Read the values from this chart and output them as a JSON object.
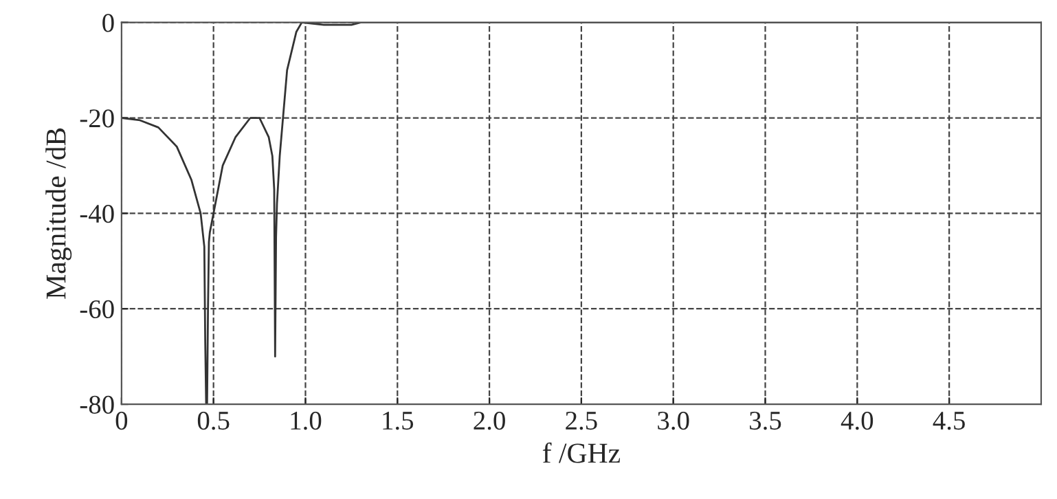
{
  "chart_data": {
    "type": "line",
    "xlabel": "f /GHz",
    "ylabel": "Magnitude /dB",
    "xlim": [
      0,
      5
    ],
    "ylim": [
      -80,
      0
    ],
    "xticks": [
      0,
      {
        "value": 0.5,
        "label": "0.5"
      },
      {
        "value": 1,
        "label": "1.0"
      },
      {
        "value": 1.5,
        "label": "1.5"
      },
      {
        "value": 2,
        "label": "2.0"
      },
      {
        "value": 2.5,
        "label": "2.5"
      },
      {
        "value": 3,
        "label": "3.0"
      },
      {
        "value": 3.5,
        "label": "3.5"
      },
      {
        "value": 4,
        "label": "4.0"
      },
      {
        "value": 4.5,
        "label": "4.5"
      }
    ],
    "yticks": [
      -80,
      -60,
      -40,
      -20,
      0
    ],
    "grid": true,
    "line_style": "solid",
    "series": [
      {
        "color": "#333333",
        "x": [
          0,
          0.1,
          0.2,
          0.3,
          0.38,
          0.43,
          0.45,
          0.455,
          0.46,
          0.465,
          0.47,
          0.475,
          0.48,
          0.5,
          0.55,
          0.62,
          0.7,
          0.75,
          0.8,
          0.82,
          0.83,
          0.835,
          0.84,
          0.845,
          0.86,
          0.9,
          0.95,
          0.98,
          1.1,
          1.25,
          1.3,
          2,
          3,
          4,
          5
        ],
        "values": [
          -20,
          -20.5,
          -22,
          -26,
          -33,
          -40,
          -47,
          -67,
          -80,
          -80,
          -60,
          -46,
          -44,
          -40,
          -30,
          -24,
          -20,
          -20,
          -24,
          -28,
          -35,
          -70,
          -45,
          -38,
          -28,
          -10,
          -2,
          0,
          -0.5,
          -0.5,
          0,
          0,
          0,
          0,
          0
        ]
      }
    ]
  }
}
